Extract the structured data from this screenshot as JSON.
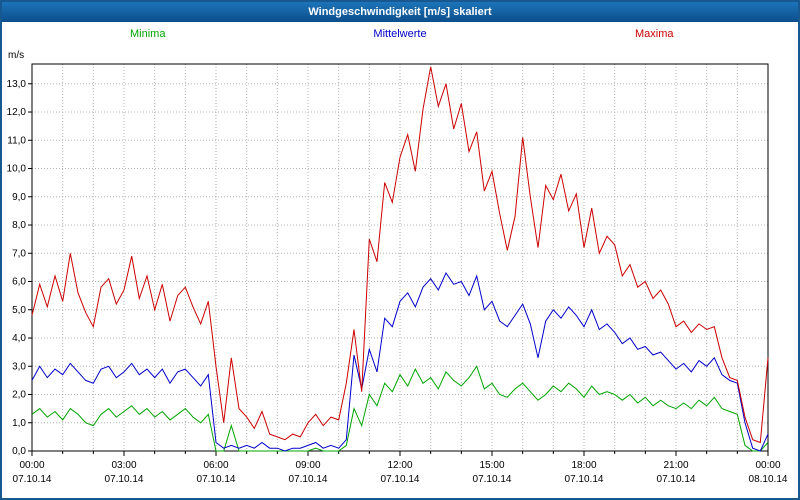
{
  "window": {
    "title": "Windgeschwindigkeit [m/s] skaliert"
  },
  "legend": {
    "items": [
      {
        "label": "Minima",
        "color": "#00A500"
      },
      {
        "label": "Mittelwerte",
        "color": "#0000CC"
      },
      {
        "label": "Maxima",
        "color": "#CC0000"
      }
    ]
  },
  "axis": {
    "unit_label": "m/s"
  },
  "chart_data": {
    "type": "line",
    "title": "Windgeschwindigkeit [m/s] skaliert",
    "xlabel": "",
    "ylabel": "m/s",
    "ylim": [
      0,
      13.7
    ],
    "y_tick_step": 1,
    "y_tick_labels": [
      "0,0",
      "1,0",
      "2,0",
      "3,0",
      "4,0",
      "5,0",
      "6,0",
      "7,0",
      "8,0",
      "9,0",
      "10,0",
      "11,0",
      "12,0",
      "13,0"
    ],
    "x_hours_range": [
      0,
      24
    ],
    "sample_interval_minutes": 15,
    "grid": {
      "horizontal_every": 1,
      "vertical_every_hours": 1,
      "style": "dotted"
    },
    "legend_position": "top",
    "x_ticks": [
      {
        "hour": 0,
        "time": "00:00",
        "date": "07.10.14"
      },
      {
        "hour": 3,
        "time": "03:00",
        "date": "07.10.14"
      },
      {
        "hour": 6,
        "time": "06:00",
        "date": "07.10.14"
      },
      {
        "hour": 9,
        "time": "09:00",
        "date": "07.10.14"
      },
      {
        "hour": 12,
        "time": "12:00",
        "date": "07.10.14"
      },
      {
        "hour": 15,
        "time": "15:00",
        "date": "07.10.14"
      },
      {
        "hour": 18,
        "time": "18:00",
        "date": "07.10.14"
      },
      {
        "hour": 21,
        "time": "21:00",
        "date": "07.10.14"
      },
      {
        "hour": 24,
        "time": "00:00",
        "date": "08.10.14"
      }
    ],
    "series": [
      {
        "name": "Minima",
        "color": "#00A500",
        "values": [
          1.3,
          1.5,
          1.2,
          1.4,
          1.1,
          1.5,
          1.3,
          1.0,
          0.9,
          1.3,
          1.5,
          1.2,
          1.4,
          1.6,
          1.3,
          1.5,
          1.2,
          1.4,
          1.1,
          1.3,
          1.5,
          1.2,
          1.0,
          1.3,
          0.0,
          0.0,
          0.9,
          0.0,
          0.0,
          0.0,
          0.0,
          0.0,
          0.0,
          0.0,
          0.0,
          0.0,
          0.0,
          0.1,
          0.0,
          0.0,
          0.0,
          0.2,
          1.5,
          0.9,
          2.0,
          1.6,
          2.4,
          2.1,
          2.7,
          2.3,
          2.9,
          2.4,
          2.6,
          2.2,
          2.8,
          2.5,
          2.3,
          2.6,
          3.0,
          2.2,
          2.4,
          2.0,
          1.9,
          2.2,
          2.4,
          2.1,
          1.8,
          2.0,
          2.3,
          2.1,
          2.4,
          2.2,
          1.9,
          2.3,
          2.0,
          2.1,
          2.0,
          1.8,
          2.0,
          1.7,
          1.9,
          1.6,
          1.8,
          1.6,
          1.5,
          1.7,
          1.5,
          1.8,
          1.6,
          1.9,
          1.5,
          1.4,
          1.3,
          0.2,
          0.0,
          0.0,
          0.3
        ]
      },
      {
        "name": "Mittelwerte",
        "color": "#0000CC",
        "values": [
          2.5,
          3.0,
          2.6,
          2.9,
          2.7,
          3.1,
          2.8,
          2.5,
          2.4,
          2.9,
          3.0,
          2.6,
          2.8,
          3.1,
          2.7,
          2.9,
          2.6,
          2.9,
          2.4,
          2.8,
          2.9,
          2.6,
          2.3,
          2.7,
          0.3,
          0.1,
          0.2,
          0.1,
          0.2,
          0.1,
          0.3,
          0.1,
          0.1,
          0.0,
          0.1,
          0.1,
          0.2,
          0.3,
          0.1,
          0.2,
          0.1,
          0.4,
          3.4,
          2.2,
          3.6,
          2.8,
          4.7,
          4.4,
          5.3,
          5.6,
          5.1,
          5.8,
          6.1,
          5.7,
          6.3,
          5.9,
          6.0,
          5.5,
          6.2,
          5.0,
          5.3,
          4.6,
          4.4,
          4.8,
          5.2,
          4.5,
          3.3,
          4.6,
          5.0,
          4.7,
          5.1,
          4.8,
          4.4,
          5.0,
          4.3,
          4.5,
          4.2,
          3.8,
          4.0,
          3.6,
          3.7,
          3.4,
          3.5,
          3.2,
          2.9,
          3.1,
          2.8,
          3.2,
          3.0,
          3.3,
          2.7,
          2.5,
          2.4,
          1.0,
          0.1,
          0.0,
          0.6
        ]
      },
      {
        "name": "Maxima",
        "color": "#CC0000",
        "values": [
          4.8,
          5.9,
          5.1,
          6.2,
          5.3,
          7.0,
          5.6,
          4.9,
          4.4,
          5.8,
          6.1,
          5.2,
          5.7,
          6.9,
          5.4,
          6.2,
          5.0,
          5.9,
          4.6,
          5.5,
          5.8,
          5.1,
          4.5,
          5.3,
          3.0,
          1.0,
          3.3,
          1.5,
          1.2,
          0.8,
          1.4,
          0.6,
          0.5,
          0.4,
          0.6,
          0.5,
          1.0,
          1.3,
          0.9,
          1.2,
          1.1,
          2.4,
          4.3,
          2.1,
          7.5,
          6.7,
          9.5,
          8.8,
          10.4,
          11.2,
          9.9,
          12.1,
          13.6,
          12.2,
          13.0,
          11.4,
          12.3,
          10.6,
          11.3,
          9.2,
          9.9,
          8.4,
          7.1,
          8.3,
          11.1,
          9.0,
          7.2,
          9.4,
          8.9,
          9.8,
          8.5,
          9.1,
          7.2,
          8.6,
          7.0,
          7.6,
          7.3,
          6.2,
          6.6,
          5.8,
          6.0,
          5.4,
          5.7,
          5.2,
          4.4,
          4.6,
          4.2,
          4.5,
          4.3,
          4.4,
          3.3,
          2.6,
          2.5,
          1.2,
          0.4,
          0.3,
          3.3
        ]
      }
    ]
  }
}
